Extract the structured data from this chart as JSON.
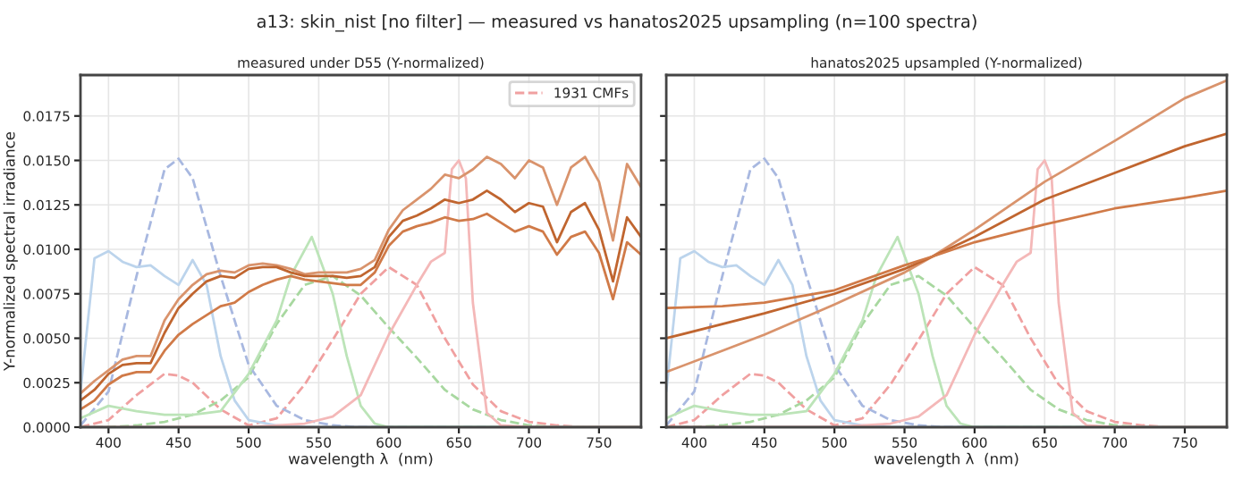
{
  "chart_data": [
    {
      "type": "line",
      "title": "measured under D55 (Y-normalized)",
      "xlabel": "wavelength λ  (nm)",
      "ylabel": "Y-normalized spectral irradiance",
      "annotations": [
        "a13: skin_nist [no filter] — measured vs hanatos2025 upsampling (n=100 spectra)"
      ],
      "xlim": [
        380,
        780
      ],
      "xticks": [
        400,
        450,
        500,
        550,
        600,
        650,
        700,
        750
      ],
      "ylim": [
        0,
        0.0198
      ],
      "yticks": [
        {
          "value": 0,
          "label": "0.0000"
        },
        {
          "value": 0.0025,
          "label": "0.0025"
        },
        {
          "value": 0.005,
          "label": "0.0050"
        },
        {
          "value": 0.0075,
          "label": "0.0075"
        },
        {
          "value": 0.01,
          "label": "0.0100"
        },
        {
          "value": 0.0125,
          "label": "0.0125"
        },
        {
          "value": 0.015,
          "label": "0.0150"
        },
        {
          "value": 0.0175,
          "label": "0.0175"
        }
      ],
      "grid": true,
      "legend": "top right",
      "series": [
        {
          "name": "1931 CMFs",
          "color": "#f0a0a0",
          "line_style": "dashed",
          "x": [
            380,
            400,
            420,
            440,
            450,
            460,
            480,
            500,
            520,
            540,
            560,
            580,
            600,
            620,
            640,
            660,
            680,
            700,
            720,
            740,
            780
          ],
          "values": [
            0,
            0.0004,
            0.0018,
            0.003,
            0.0029,
            0.0025,
            0.001,
            0.0001,
            0.0005,
            0.0024,
            0.0049,
            0.0075,
            0.009,
            0.008,
            0.005,
            0.0024,
            0.0009,
            0.0003,
            0.0001,
            0,
            0
          ]
        },
        {
          "color": "#a8d8a0",
          "line_style": "dashed",
          "x": [
            380,
            400,
            420,
            440,
            450,
            460,
            480,
            500,
            520,
            540,
            560,
            580,
            600,
            620,
            640,
            660,
            680,
            700,
            720,
            740,
            780
          ],
          "values": [
            0,
            0,
            0.0001,
            0.0003,
            0.0005,
            0.0007,
            0.0015,
            0.0028,
            0.0058,
            0.008,
            0.0085,
            0.0074,
            0.0056,
            0.0039,
            0.0021,
            0.001,
            0.0004,
            0.0001,
            0,
            0,
            0
          ]
        },
        {
          "color": "#a8b8e0",
          "line_style": "dashed",
          "x": [
            380,
            400,
            420,
            440,
            450,
            460,
            480,
            500,
            520,
            540,
            560,
            580,
            600,
            620,
            640,
            660,
            680,
            700,
            720,
            740,
            780
          ],
          "values": [
            0.0001,
            0.002,
            0.0085,
            0.0145,
            0.0151,
            0.014,
            0.0085,
            0.0035,
            0.0012,
            0.0004,
            0.0001,
            0,
            0,
            0,
            0,
            0,
            0,
            0,
            0,
            0,
            0
          ]
        },
        {
          "color": "#bcd4ec",
          "line_style": "solid",
          "x": [
            380,
            390,
            400,
            410,
            420,
            430,
            440,
            450,
            460,
            470,
            480,
            490,
            500,
            520,
            540,
            780
          ],
          "values": [
            0.002,
            0.0095,
            0.0099,
            0.0093,
            0.009,
            0.0091,
            0.0085,
            0.008,
            0.0094,
            0.008,
            0.004,
            0.0015,
            0.0004,
            0.0001,
            0,
            0
          ]
        },
        {
          "color": "#bce4b8",
          "line_style": "solid",
          "x": [
            380,
            400,
            420,
            440,
            460,
            480,
            500,
            520,
            530,
            545,
            560,
            570,
            580,
            590,
            600,
            780
          ],
          "values": [
            0.0005,
            0.0012,
            0.0009,
            0.0007,
            0.0007,
            0.0009,
            0.003,
            0.006,
            0.0085,
            0.0107,
            0.0075,
            0.004,
            0.0012,
            0.0002,
            0,
            0
          ]
        },
        {
          "color": "#f4b8b8",
          "line_style": "solid",
          "x": [
            380,
            500,
            540,
            560,
            580,
            600,
            620,
            630,
            640,
            645,
            650,
            655,
            660,
            670,
            680,
            700,
            780
          ],
          "values": [
            0,
            0,
            0.0002,
            0.0006,
            0.0018,
            0.0052,
            0.008,
            0.0093,
            0.0098,
            0.0145,
            0.015,
            0.014,
            0.007,
            0.0008,
            0.0001,
            0,
            0
          ]
        },
        {
          "color": "#d9936c",
          "line_style": "solid",
          "x": [
            380,
            390,
            400,
            410,
            420,
            430,
            440,
            450,
            460,
            470,
            480,
            490,
            500,
            510,
            520,
            530,
            540,
            550,
            560,
            570,
            580,
            590,
            600,
            610,
            620,
            630,
            640,
            650,
            660,
            670,
            680,
            690,
            700,
            710,
            720,
            730,
            740,
            750,
            760,
            770,
            780
          ],
          "values": [
            0.0019,
            0.0026,
            0.0032,
            0.0038,
            0.004,
            0.004,
            0.006,
            0.0072,
            0.008,
            0.0086,
            0.0088,
            0.0087,
            0.0091,
            0.0092,
            0.0091,
            0.0089,
            0.0086,
            0.0087,
            0.0087,
            0.0087,
            0.0089,
            0.0094,
            0.0111,
            0.0122,
            0.0128,
            0.0134,
            0.0142,
            0.014,
            0.0145,
            0.0152,
            0.0148,
            0.014,
            0.015,
            0.0146,
            0.0125,
            0.0146,
            0.0152,
            0.0138,
            0.0105,
            0.0148,
            0.0135
          ]
        },
        {
          "color": "#c0652f",
          "line_style": "solid",
          "x": [
            380,
            390,
            400,
            410,
            420,
            430,
            440,
            450,
            460,
            470,
            480,
            490,
            500,
            510,
            520,
            530,
            540,
            550,
            560,
            570,
            580,
            590,
            600,
            610,
            620,
            630,
            640,
            650,
            660,
            670,
            680,
            690,
            700,
            710,
            720,
            730,
            740,
            750,
            760,
            770,
            780
          ],
          "values": [
            0.0015,
            0.0021,
            0.003,
            0.0035,
            0.0036,
            0.0036,
            0.0053,
            0.0067,
            0.0075,
            0.0082,
            0.0085,
            0.0084,
            0.0089,
            0.009,
            0.009,
            0.0087,
            0.0085,
            0.0085,
            0.0085,
            0.0084,
            0.0085,
            0.009,
            0.0107,
            0.0116,
            0.0119,
            0.0123,
            0.0128,
            0.0126,
            0.0128,
            0.0133,
            0.0128,
            0.0121,
            0.0126,
            0.0124,
            0.0104,
            0.0121,
            0.0126,
            0.0111,
            0.0082,
            0.0118,
            0.0107
          ]
        },
        {
          "color": "#d07a48",
          "line_style": "solid",
          "x": [
            380,
            390,
            400,
            410,
            420,
            430,
            440,
            450,
            460,
            470,
            480,
            490,
            500,
            510,
            520,
            530,
            540,
            550,
            560,
            570,
            580,
            590,
            600,
            610,
            620,
            630,
            640,
            650,
            660,
            670,
            680,
            690,
            700,
            710,
            720,
            730,
            740,
            750,
            760,
            770,
            780
          ],
          "values": [
            0.001,
            0.0015,
            0.0024,
            0.0029,
            0.0031,
            0.0031,
            0.0043,
            0.0052,
            0.0058,
            0.0063,
            0.0068,
            0.007,
            0.0076,
            0.008,
            0.0083,
            0.0085,
            0.0083,
            0.0082,
            0.0081,
            0.008,
            0.008,
            0.0087,
            0.0102,
            0.011,
            0.0113,
            0.0115,
            0.0118,
            0.0116,
            0.0117,
            0.012,
            0.0115,
            0.011,
            0.0113,
            0.011,
            0.0097,
            0.0107,
            0.011,
            0.0098,
            0.0072,
            0.0104,
            0.0097
          ]
        }
      ]
    },
    {
      "type": "line",
      "title": "hanatos2025 upsampled (Y-normalized)",
      "xlabel": "wavelength λ  (nm)",
      "tick_labels": "x",
      "xlim": [
        380,
        780
      ],
      "xticks": [
        400,
        450,
        500,
        550,
        600,
        650,
        700,
        750
      ],
      "ylim": [
        0,
        0.0198
      ],
      "yticks": [
        {
          "value": 0,
          "label": null
        },
        {
          "value": 0.0025,
          "label": null
        },
        {
          "value": 0.005,
          "label": null
        },
        {
          "value": 0.0075,
          "label": null
        },
        {
          "value": 0.01,
          "label": null
        },
        {
          "value": 0.0125,
          "label": null
        },
        {
          "value": 0.015,
          "label": null
        },
        {
          "value": 0.0175,
          "label": null
        }
      ],
      "grid": true,
      "series": [
        {
          "color": "#f0a0a0",
          "line_style": "dashed",
          "x": [
            380,
            400,
            420,
            440,
            450,
            460,
            480,
            500,
            520,
            540,
            560,
            580,
            600,
            620,
            640,
            660,
            680,
            700,
            720,
            740,
            780
          ],
          "values": [
            0,
            0.0004,
            0.0018,
            0.003,
            0.0029,
            0.0025,
            0.001,
            0.0001,
            0.0005,
            0.0024,
            0.0049,
            0.0075,
            0.009,
            0.008,
            0.005,
            0.0024,
            0.0009,
            0.0003,
            0.0001,
            0,
            0
          ]
        },
        {
          "color": "#a8d8a0",
          "line_style": "dashed",
          "x": [
            380,
            400,
            420,
            440,
            450,
            460,
            480,
            500,
            520,
            540,
            560,
            580,
            600,
            620,
            640,
            660,
            680,
            700,
            720,
            740,
            780
          ],
          "values": [
            0,
            0,
            0.0001,
            0.0003,
            0.0005,
            0.0007,
            0.0015,
            0.0028,
            0.0058,
            0.008,
            0.0085,
            0.0074,
            0.0056,
            0.0039,
            0.0021,
            0.001,
            0.0004,
            0.0001,
            0,
            0,
            0
          ]
        },
        {
          "color": "#a8b8e0",
          "line_style": "dashed",
          "x": [
            380,
            400,
            420,
            440,
            450,
            460,
            480,
            500,
            520,
            540,
            560,
            580,
            600,
            620,
            640,
            660,
            680,
            700,
            720,
            740,
            780
          ],
          "values": [
            0.0001,
            0.002,
            0.0085,
            0.0145,
            0.0151,
            0.014,
            0.0085,
            0.0035,
            0.0012,
            0.0004,
            0.0001,
            0,
            0,
            0,
            0,
            0,
            0,
            0,
            0,
            0,
            0
          ]
        },
        {
          "color": "#bcd4ec",
          "line_style": "solid",
          "x": [
            380,
            390,
            400,
            410,
            420,
            430,
            440,
            450,
            460,
            470,
            480,
            490,
            500,
            520,
            540,
            780
          ],
          "values": [
            0.002,
            0.0095,
            0.0099,
            0.0093,
            0.009,
            0.0091,
            0.0085,
            0.008,
            0.0094,
            0.008,
            0.004,
            0.0015,
            0.0004,
            0.0001,
            0,
            0
          ]
        },
        {
          "color": "#bce4b8",
          "line_style": "solid",
          "x": [
            380,
            400,
            420,
            440,
            460,
            480,
            500,
            520,
            530,
            545,
            560,
            570,
            580,
            590,
            600,
            780
          ],
          "values": [
            0.0005,
            0.0012,
            0.0009,
            0.0007,
            0.0007,
            0.0009,
            0.003,
            0.006,
            0.0085,
            0.0107,
            0.0075,
            0.004,
            0.0012,
            0.0002,
            0,
            0
          ]
        },
        {
          "color": "#f4b8b8",
          "line_style": "solid",
          "x": [
            380,
            500,
            540,
            560,
            580,
            600,
            620,
            630,
            640,
            645,
            650,
            655,
            660,
            670,
            680,
            700,
            780
          ],
          "values": [
            0,
            0,
            0.0002,
            0.0006,
            0.0018,
            0.0052,
            0.008,
            0.0093,
            0.0098,
            0.0145,
            0.015,
            0.014,
            0.007,
            0.0008,
            0.0001,
            0,
            0
          ]
        },
        {
          "color": "#d9936c",
          "line_style": "solid",
          "x": [
            380,
            420,
            450,
            500,
            550,
            570,
            600,
            650,
            700,
            750,
            780
          ],
          "values": [
            0.0031,
            0.0043,
            0.0052,
            0.0069,
            0.0087,
            0.0096,
            0.0111,
            0.0138,
            0.0161,
            0.0185,
            0.0195
          ]
        },
        {
          "color": "#c0652f",
          "line_style": "solid",
          "x": [
            380,
            420,
            450,
            500,
            550,
            570,
            600,
            650,
            700,
            750,
            780
          ],
          "values": [
            0.005,
            0.0058,
            0.0064,
            0.0075,
            0.0089,
            0.0096,
            0.0107,
            0.0128,
            0.0143,
            0.0158,
            0.0165
          ]
        },
        {
          "color": "#d07a48",
          "line_style": "solid",
          "x": [
            380,
            420,
            450,
            500,
            550,
            570,
            600,
            650,
            700,
            750,
            780
          ],
          "values": [
            0.0067,
            0.0068,
            0.007,
            0.0077,
            0.0091,
            0.0096,
            0.0104,
            0.0114,
            0.0123,
            0.0129,
            0.0133
          ]
        }
      ]
    }
  ]
}
